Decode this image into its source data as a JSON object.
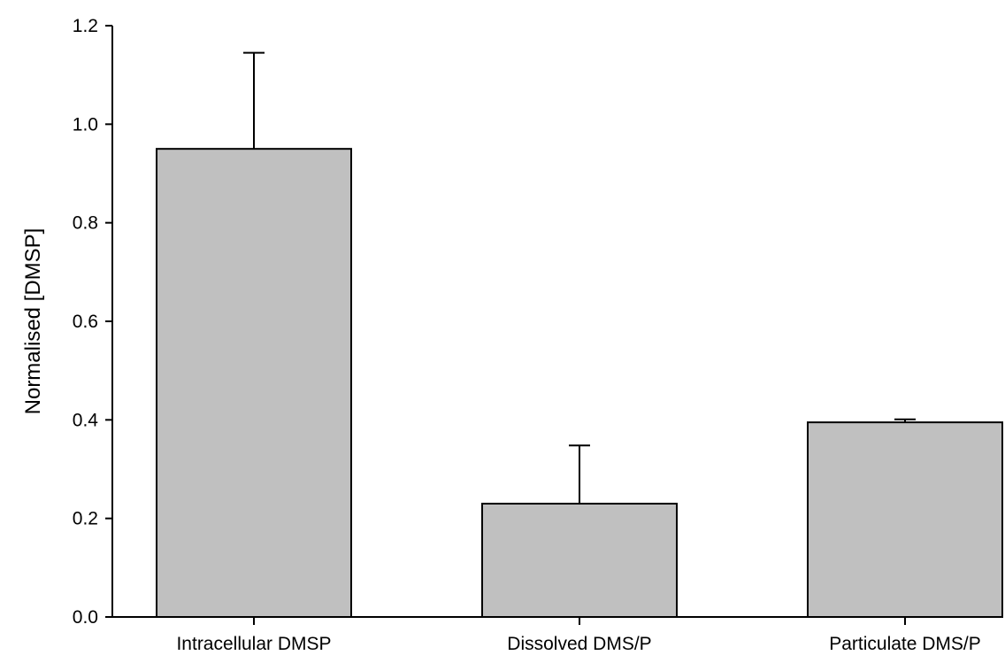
{
  "chart_data": {
    "type": "bar",
    "title": "",
    "xlabel": "",
    "ylabel": "Normalised [DMSP]",
    "categories": [
      "Intracellular DMSP",
      "Dissolved DMS/P",
      "Particulate DMS/P"
    ],
    "values": [
      0.95,
      0.23,
      0.395
    ],
    "error_plus": [
      0.195,
      0.118,
      0.006
    ],
    "ylim": [
      0,
      1.2
    ],
    "yticks": [
      "0.0",
      "0.2",
      "0.4",
      "0.6",
      "0.8",
      "1.0",
      "1.2"
    ],
    "grid": false,
    "legend": "none",
    "colors": {
      "bar_fill": "#c0c0c0",
      "bar_stroke": "#000000",
      "axis": "#000000"
    }
  }
}
